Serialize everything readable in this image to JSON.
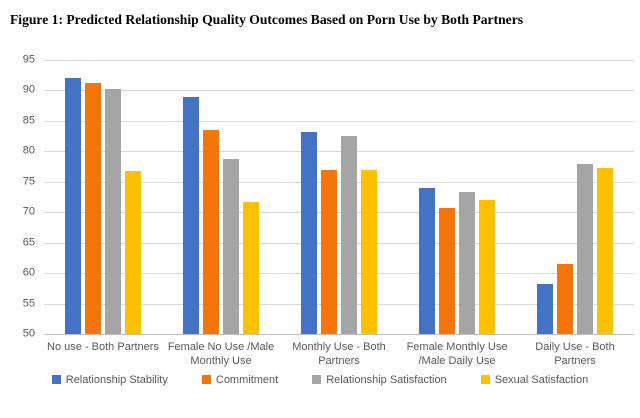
{
  "title": "Figure 1: Predicted Relationship Quality Outcomes Based on Porn Use by Both Partners",
  "chart_data": {
    "type": "bar",
    "title": "Figure 1: Predicted Relationship Quality Outcomes Based on Porn Use by Both Partners",
    "categories": [
      "No use - Both Partners",
      "Female No Use /Male Monthly Use",
      "Monthly Use - Both Partners",
      "Female Monthly Use /Male Daily Use",
      "Daily Use - Both Partners"
    ],
    "series": [
      {
        "name": "Relationship Stability",
        "color": "#4472C4",
        "values": [
          92.0,
          89.0,
          83.2,
          74.0,
          58.2
        ]
      },
      {
        "name": "Commitment",
        "color": "#F4760B",
        "values": [
          91.3,
          83.5,
          77.0,
          70.7,
          61.5
        ]
      },
      {
        "name": "Relationship Satisfaction",
        "color": "#A5A5A5",
        "values": [
          90.2,
          78.7,
          82.5,
          73.3,
          78.0
        ]
      },
      {
        "name": "Sexual Satisfaction",
        "color": "#FFC000",
        "values": [
          76.7,
          71.7,
          77.0,
          72.0,
          77.3
        ]
      }
    ],
    "y_ticks": [
      50,
      55,
      60,
      65,
      70,
      75,
      80,
      85,
      90,
      95
    ],
    "ylim": [
      50,
      95
    ],
    "xlabel": "",
    "ylabel": "",
    "grid": true,
    "legend_position": "bottom"
  }
}
